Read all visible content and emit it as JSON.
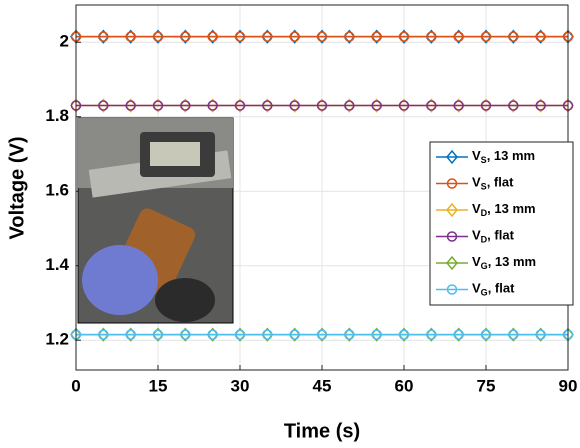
{
  "chart_data": {
    "type": "line",
    "x_label": "Time (s)",
    "y_label": "Voltage (V)",
    "x": [
      0,
      5,
      10,
      15,
      20,
      25,
      30,
      35,
      40,
      45,
      50,
      55,
      60,
      65,
      70,
      75,
      80,
      85,
      90
    ],
    "xlim": [
      0,
      90
    ],
    "xticks": [
      0,
      15,
      30,
      45,
      60,
      75,
      90
    ],
    "ylim": [
      1.12,
      2.1
    ],
    "yticks": [
      1.2,
      1.4,
      1.6,
      1.8,
      2
    ],
    "grid": true,
    "legend_position": "right",
    "series": [
      {
        "name": "VS, 13 mm",
        "color": "#0072BD",
        "marker": "diamond",
        "values": [
          2.015,
          2.015,
          2.015,
          2.015,
          2.015,
          2.015,
          2.015,
          2.015,
          2.015,
          2.015,
          2.015,
          2.015,
          2.015,
          2.015,
          2.015,
          2.015,
          2.015,
          2.015,
          2.015
        ]
      },
      {
        "name": "VS, flat",
        "color": "#D95319",
        "marker": "circle",
        "values": [
          2.015,
          2.015,
          2.015,
          2.015,
          2.015,
          2.015,
          2.015,
          2.015,
          2.015,
          2.015,
          2.015,
          2.015,
          2.015,
          2.015,
          2.015,
          2.015,
          2.015,
          2.015,
          2.015
        ]
      },
      {
        "name": "VD, 13 mm",
        "color": "#EDB120",
        "marker": "diamond",
        "values": [
          1.83,
          1.83,
          1.83,
          1.83,
          1.83,
          1.83,
          1.83,
          1.83,
          1.83,
          1.83,
          1.83,
          1.83,
          1.83,
          1.83,
          1.83,
          1.83,
          1.83,
          1.83,
          1.83
        ]
      },
      {
        "name": "VD, flat",
        "color": "#7E2F8E",
        "marker": "circle",
        "values": [
          1.83,
          1.83,
          1.83,
          1.83,
          1.83,
          1.83,
          1.83,
          1.83,
          1.83,
          1.83,
          1.83,
          1.83,
          1.83,
          1.83,
          1.83,
          1.83,
          1.83,
          1.83,
          1.83
        ]
      },
      {
        "name": "VG, 13 mm",
        "color": "#77AC30",
        "marker": "diamond",
        "values": [
          1.215,
          1.215,
          1.215,
          1.215,
          1.215,
          1.215,
          1.215,
          1.215,
          1.215,
          1.215,
          1.215,
          1.215,
          1.215,
          1.215,
          1.215,
          1.215,
          1.215,
          1.215,
          1.215
        ]
      },
      {
        "name": "VG, flat",
        "color": "#4DBEEE",
        "marker": "circle",
        "values": [
          1.215,
          1.215,
          1.215,
          1.215,
          1.215,
          1.215,
          1.215,
          1.215,
          1.215,
          1.215,
          1.215,
          1.215,
          1.215,
          1.215,
          1.215,
          1.215,
          1.215,
          1.215,
          1.215
        ]
      }
    ]
  }
}
